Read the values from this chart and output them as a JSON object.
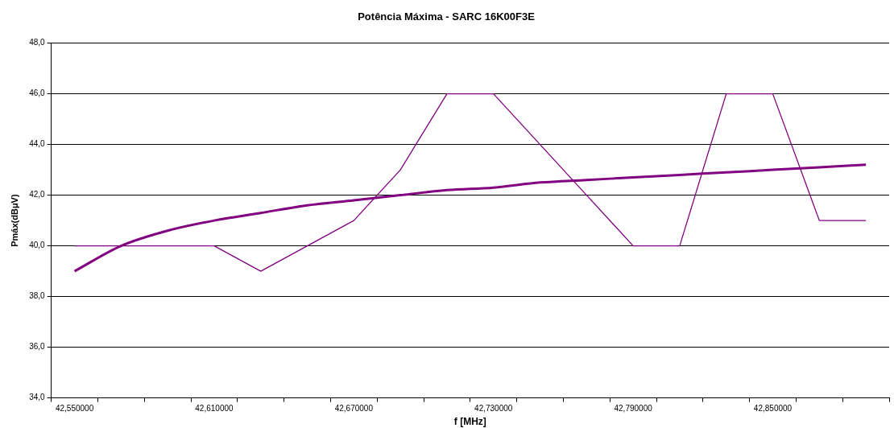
{
  "chart_data": {
    "type": "line",
    "title": "Potência Máxima - SARC 16K00F3E",
    "xlabel": "f [MHz]",
    "ylabel": "Pmáx(dBμV)",
    "categories": [
      "42,550000",
      null,
      null,
      "42,610000",
      null,
      null,
      "42,670000",
      null,
      null,
      "42,730000",
      null,
      null,
      "42,790000",
      null,
      null,
      "42,850000",
      null,
      null
    ],
    "series": [
      {
        "color": "#800080",
        "values": [
          40,
          40,
          40,
          40,
          39,
          40,
          41,
          43,
          46,
          46,
          44,
          42,
          40,
          40,
          46,
          46,
          41,
          41
        ]
      },
      {
        "color": "#800080",
        "values": [
          39.0,
          40.0,
          40.6,
          41.0,
          41.3,
          41.6,
          41.8,
          42.0,
          42.2,
          42.3,
          42.5,
          42.6,
          42.7,
          42.8,
          42.9,
          43.0,
          43.1,
          43.2
        ]
      }
    ],
    "ylim": [
      34,
      48
    ],
    "yticks": [
      {
        "value": 34,
        "label": "34,0"
      },
      {
        "value": 36,
        "label": "36,0"
      },
      {
        "value": 38,
        "label": "38,0"
      },
      {
        "value": 40,
        "label": "40,0"
      },
      {
        "value": 42,
        "label": "42,0"
      },
      {
        "value": 44,
        "label": "44,0"
      },
      {
        "value": 46,
        "label": "46,0"
      },
      {
        "value": 48,
        "label": "48,0"
      }
    ],
    "grid": "y",
    "legend": false,
    "marker": "none",
    "line_style": "solid"
  }
}
